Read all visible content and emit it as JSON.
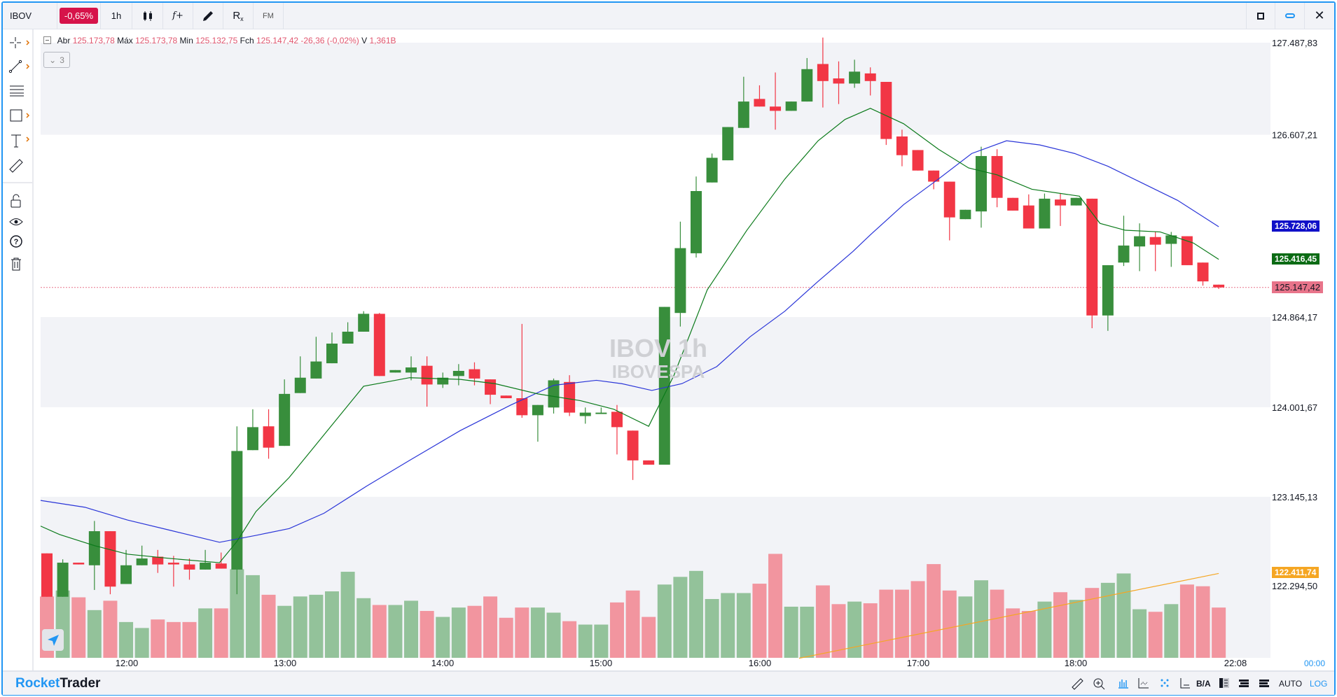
{
  "toolbar": {
    "symbol": "IBOV",
    "change": "-0,65%",
    "interval": "1h",
    "func_label": "f+",
    "rx_label": "R",
    "fm_label": "FM"
  },
  "legend": {
    "open_label": "Abr",
    "open": "125.173,78",
    "high_label": "Máx",
    "high": "125.173,78",
    "low_label": "Min",
    "low": "125.132,75",
    "close_label": "Fch",
    "close": "125.147,42",
    "change": "-26,36 (-0,02%)",
    "vol_label": "V",
    "vol": "1,361B",
    "indicators_count": "3"
  },
  "watermark": {
    "title": "IBOV 1h",
    "subtitle": "IBOVESPA"
  },
  "price_axis": [
    "127.487,83",
    "126.607,21",
    "124.864,17",
    "124.001,67",
    "123.145,13",
    "122.294,50"
  ],
  "price_tags": [
    {
      "text": "125.728,06",
      "value": 125728.06,
      "color": "#1010c8"
    },
    {
      "text": "125.416,45",
      "value": 125416.45,
      "color": "#0b6b14"
    },
    {
      "text": "125.147,42",
      "value": 125147.42,
      "color": "#e8748a"
    },
    {
      "text": "122.411,74",
      "value": 122411.74,
      "color": "#f5a623"
    }
  ],
  "time_axis": [
    "12:00",
    "13:00",
    "14:00",
    "15:00",
    "16:00",
    "17:00",
    "18:00",
    "22:08"
  ],
  "time_axis_right": "00:00",
  "footer": {
    "brand_a": "Rocket",
    "brand_b": "Trader",
    "ba_label": "B/A",
    "auto": "AUTO",
    "log": "LOG"
  },
  "colors": {
    "up": "#388e3c",
    "down": "#f23645",
    "up_vol": "#93c29a",
    "down_vol": "#f2959f",
    "ma_fast": "#0b7a1a",
    "ma_slow": "#2a35d8",
    "accent": "#2196f3"
  },
  "chart_data": {
    "type": "candlestick",
    "price_ticks": [
      127487.83,
      126607.21,
      124864.17,
      124001.67,
      123145.13,
      122294.5
    ],
    "candles": [
      [
        122604,
        122604,
        122189,
        122189
      ],
      [
        122189,
        122547,
        122189,
        122515
      ],
      [
        122515,
        122515,
        122498,
        122498
      ],
      [
        122490,
        122914,
        122254,
        122816
      ],
      [
        122816,
        122816,
        122213,
        122286
      ],
      [
        122311,
        122637,
        122311,
        122490
      ],
      [
        122490,
        122678,
        122490,
        122555
      ],
      [
        122572,
        122637,
        122417,
        122498
      ],
      [
        122515,
        122580,
        122286,
        122498
      ],
      [
        122498,
        122555,
        122352,
        122449
      ],
      [
        122449,
        122637,
        122449,
        122515
      ],
      [
        122507,
        122612,
        122458,
        122458
      ],
      [
        122449,
        123819,
        122213,
        123583
      ],
      [
        123591,
        123982,
        123591,
        123811
      ],
      [
        123819,
        123982,
        123509,
        123615
      ],
      [
        123632,
        124268,
        123632,
        124129
      ],
      [
        124137,
        124488,
        124137,
        124284
      ],
      [
        124276,
        124675,
        124276,
        124439
      ],
      [
        124422,
        124716,
        124422,
        124610
      ],
      [
        124610,
        124814,
        124610,
        124724
      ],
      [
        124724,
        124920,
        124724,
        124895
      ],
      [
        124895,
        124903,
        124300,
        124300
      ],
      [
        124333,
        124357,
        124333,
        124357
      ],
      [
        124333,
        124488,
        124259,
        124382
      ],
      [
        124398,
        124488,
        124007,
        124219
      ],
      [
        124219,
        124333,
        124186,
        124284
      ],
      [
        124300,
        124414,
        124211,
        124349
      ],
      [
        124365,
        124431,
        124211,
        124276
      ],
      [
        124268,
        124268,
        124031,
        124121
      ],
      [
        124113,
        124113,
        124088,
        124088
      ],
      [
        124088,
        124798,
        123901,
        123925
      ],
      [
        123925,
        124023,
        123672,
        124023
      ],
      [
        123999,
        124276,
        123941,
        124259
      ],
      [
        124243,
        124308,
        123917,
        123950
      ],
      [
        123917,
        123999,
        123844,
        123950
      ],
      [
        123941,
        123999,
        123941,
        123950
      ],
      [
        123958,
        124023,
        123550,
        123811
      ],
      [
        123778,
        123778,
        123306,
        123493
      ],
      [
        123493,
        123493,
        123452,
        123452
      ],
      [
        123452,
        124961,
        123452,
        124961
      ],
      [
        124903,
        125776,
        124773,
        125523
      ],
      [
        125474,
        126208,
        125433,
        126069
      ],
      [
        126151,
        126428,
        126151,
        126387
      ],
      [
        126363,
        126681,
        126363,
        126681
      ],
      [
        126673,
        127162,
        126673,
        126925
      ],
      [
        126950,
        127080,
        126877,
        126877
      ],
      [
        126877,
        127203,
        126656,
        126836
      ],
      [
        126836,
        126925,
        126836,
        126925
      ],
      [
        126925,
        127341,
        126925,
        127235
      ],
      [
        127284,
        127537,
        126868,
        127121
      ],
      [
        127146,
        127309,
        126901,
        127097
      ],
      [
        127097,
        127325,
        127056,
        127211
      ],
      [
        127194,
        127252,
        126983,
        127121
      ],
      [
        127113,
        127113,
        126510,
        126567
      ],
      [
        126591,
        126656,
        126306,
        126412
      ],
      [
        126461,
        126461,
        126265,
        126265
      ],
      [
        126265,
        126265,
        126086,
        126159
      ],
      [
        126159,
        126159,
        125597,
        125817
      ],
      [
        125800,
        125890,
        125800,
        125890
      ],
      [
        125874,
        126493,
        125719,
        126404
      ],
      [
        126404,
        126469,
        125914,
        126004
      ],
      [
        126004,
        126004,
        125882,
        125882
      ],
      [
        125931,
        126037,
        125711,
        125711
      ],
      [
        125711,
        126045,
        125711,
        125996
      ],
      [
        125988,
        126045,
        125735,
        125931
      ],
      [
        125931,
        126004,
        125931,
        126004
      ],
      [
        125996,
        125996,
        124757,
        124879
      ],
      [
        124879,
        125360,
        124732,
        125360
      ],
      [
        125385,
        125833,
        125352,
        125548
      ],
      [
        125539,
        125760,
        125303,
        125637
      ],
      [
        125629,
        125678,
        125303,
        125556
      ],
      [
        125564,
        125678,
        125344,
        125645
      ],
      [
        125637,
        125637,
        125360,
        125360
      ],
      [
        125385,
        125385,
        125164,
        125205
      ],
      [
        125173.78,
        125173.78,
        125132.75,
        125147.42
      ]
    ],
    "volume": [
      72,
      79,
      71,
      56,
      67,
      42,
      35,
      45,
      42,
      42,
      58,
      58,
      104,
      97,
      74,
      61,
      72,
      74,
      78,
      101,
      70,
      62,
      62,
      67,
      55,
      48,
      59,
      61,
      72,
      47,
      59,
      59,
      53,
      43,
      39,
      39,
      65,
      79,
      48,
      86,
      95,
      102,
      69,
      76,
      76,
      87,
      122,
      60,
      60,
      85,
      63,
      66,
      64,
      80,
      80,
      90,
      110,
      79,
      72,
      91,
      80,
      58,
      55,
      66,
      77,
      68,
      82,
      88,
      99,
      57,
      54,
      63,
      86,
      84,
      59
    ],
    "ma_fast": [
      [
        -0.4,
        122865
      ],
      [
        0.8,
        122784
      ],
      [
        3,
        122678
      ],
      [
        5.1,
        122596
      ],
      [
        7.8,
        122555
      ],
      [
        10.9,
        122515
      ],
      [
        12,
        122718
      ],
      [
        13.2,
        123004
      ],
      [
        15.3,
        123330
      ],
      [
        17.5,
        123738
      ],
      [
        20,
        124202
      ],
      [
        22.9,
        124284
      ],
      [
        26.1,
        124268
      ],
      [
        28.3,
        124227
      ],
      [
        31,
        124129
      ],
      [
        33.7,
        124064
      ],
      [
        35.8,
        123982
      ],
      [
        38,
        123819
      ],
      [
        39.6,
        124308
      ],
      [
        41.7,
        125124
      ],
      [
        44.2,
        125694
      ],
      [
        46.6,
        126184
      ],
      [
        48.7,
        126550
      ],
      [
        50.4,
        126754
      ],
      [
        52,
        126860
      ],
      [
        54.1,
        126713
      ],
      [
        56.3,
        126469
      ],
      [
        58.2,
        126290
      ],
      [
        60,
        126224
      ],
      [
        62.2,
        126086
      ],
      [
        65.2,
        126020
      ],
      [
        66.5,
        125760
      ],
      [
        68.1,
        125694
      ],
      [
        70.3,
        125678
      ],
      [
        72.4,
        125572
      ],
      [
        74,
        125416
      ]
    ],
    "ma_slow": [
      [
        -0.4,
        123110
      ],
      [
        2.4,
        123045
      ],
      [
        5.1,
        122922
      ],
      [
        7.8,
        122824
      ],
      [
        10.9,
        122710
      ],
      [
        13.2,
        122776
      ],
      [
        15.3,
        122841
      ],
      [
        17.5,
        122988
      ],
      [
        20.2,
        123248
      ],
      [
        22.9,
        123493
      ],
      [
        26.1,
        123778
      ],
      [
        29.3,
        124023
      ],
      [
        32,
        124211
      ],
      [
        34.7,
        124259
      ],
      [
        36.3,
        124227
      ],
      [
        38.2,
        124162
      ],
      [
        40.1,
        124227
      ],
      [
        42.3,
        124390
      ],
      [
        44.4,
        124675
      ],
      [
        46.6,
        124920
      ],
      [
        48.7,
        125205
      ],
      [
        50.9,
        125491
      ],
      [
        52,
        125650
      ],
      [
        54.1,
        125939
      ],
      [
        56.3,
        126184
      ],
      [
        58.4,
        126428
      ],
      [
        60.6,
        126550
      ],
      [
        62.7,
        126510
      ],
      [
        64.9,
        126428
      ],
      [
        67,
        126306
      ],
      [
        69.2,
        126143
      ],
      [
        71.4,
        125980
      ],
      [
        74,
        125728
      ]
    ],
    "trendline": [
      [
        47.5,
        121601
      ],
      [
        74,
        122411.74
      ]
    ]
  }
}
